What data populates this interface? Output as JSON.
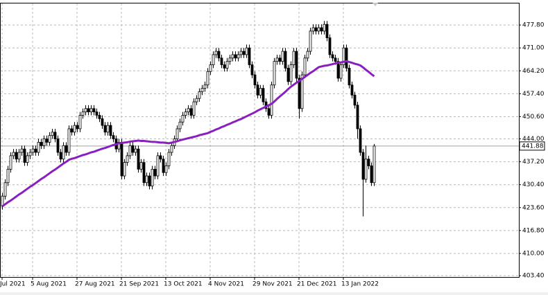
{
  "chart_data": {
    "type": "candlestick",
    "categories": [
      "Jul 2021",
      null,
      null,
      null,
      null,
      null,
      null,
      null,
      null,
      null,
      null,
      "5 Aug 2021",
      null,
      null,
      null,
      null,
      null,
      null,
      null,
      null,
      null,
      null,
      null,
      null,
      null,
      null,
      null,
      "27 Aug 2021",
      null,
      null,
      null,
      null,
      null,
      null,
      null,
      null,
      null,
      null,
      null,
      null,
      null,
      null,
      null,
      "21 Sep 2021",
      null,
      null,
      null,
      null,
      null,
      null,
      null,
      null,
      null,
      null,
      null,
      null,
      null,
      null,
      null,
      "13 Oct 2021",
      null,
      null,
      null,
      null,
      null,
      null,
      null,
      null,
      null,
      null,
      null,
      null,
      null,
      null,
      null,
      "4 Nov 2021",
      null,
      null,
      null,
      null,
      null,
      null,
      null,
      null,
      null,
      null,
      null,
      null,
      null,
      null,
      null,
      "29 Nov 2021",
      null,
      null,
      null,
      null,
      null,
      null,
      null,
      null,
      null,
      null,
      null,
      null,
      null,
      null,
      null,
      "21 Dec 2021",
      null,
      null,
      null,
      null,
      null,
      null,
      null,
      null,
      null,
      null,
      null,
      null,
      null,
      null,
      null,
      "13 Jan 2022",
      null,
      null,
      null,
      null,
      null,
      null,
      null,
      null,
      null,
      null,
      null
    ],
    "open": [
      424,
      427,
      431,
      435,
      439,
      440,
      438,
      440,
      441,
      437,
      439,
      440,
      441,
      440,
      443,
      442,
      444,
      443,
      445,
      446,
      444,
      440,
      438,
      442,
      440,
      447,
      446,
      448,
      447,
      451,
      452,
      453,
      452,
      453,
      452,
      451,
      450,
      448,
      446,
      448,
      445,
      444,
      441,
      443,
      433,
      437,
      439,
      442,
      440,
      441,
      435,
      437,
      431,
      433,
      430,
      435,
      433,
      439,
      438,
      434,
      436,
      440,
      442,
      444,
      447,
      449,
      451,
      452,
      453,
      451,
      455,
      456,
      458,
      459,
      460,
      464,
      466,
      469,
      470,
      468,
      466,
      465,
      467,
      468,
      469,
      468,
      469,
      470,
      469,
      471,
      466,
      463,
      460,
      457,
      459,
      455,
      453,
      451,
      460,
      467,
      468,
      467,
      470,
      465,
      461,
      466,
      470,
      462,
      453,
      463,
      468,
      470,
      476,
      477,
      476,
      477,
      476,
      478,
      474,
      469,
      468,
      467,
      462,
      466,
      471,
      465,
      460,
      457,
      454,
      447,
      440,
      432,
      438,
      436,
      431
    ],
    "high": [
      428,
      432,
      436,
      440,
      441,
      441,
      441,
      442,
      442,
      440,
      441,
      442,
      442,
      444,
      444,
      445,
      445,
      446,
      447,
      447,
      445,
      441,
      443,
      443,
      448,
      448,
      449,
      449,
      452,
      453,
      454,
      454,
      454,
      454,
      453,
      452,
      451,
      449,
      449,
      449,
      446,
      445,
      444,
      444,
      438,
      440,
      443,
      443,
      442,
      442,
      438,
      438,
      434,
      434,
      436,
      436,
      440,
      440,
      439,
      437,
      441,
      443,
      445,
      448,
      450,
      452,
      453,
      454,
      454,
      456,
      457,
      459,
      460,
      461,
      465,
      467,
      470,
      471,
      471,
      469,
      467,
      468,
      469,
      470,
      470,
      470,
      471,
      471,
      472,
      472,
      467,
      464,
      461,
      460,
      460,
      456,
      454,
      461,
      468,
      469,
      469,
      471,
      471,
      466,
      467,
      471,
      471,
      463,
      464,
      469,
      471,
      477,
      478,
      478,
      478,
      478,
      479,
      479,
      475,
      470,
      469,
      468,
      467,
      472,
      472,
      466,
      461,
      458,
      455,
      448,
      441,
      442,
      439,
      437,
      442.5
    ],
    "low": [
      423,
      426,
      430,
      434,
      438,
      437,
      437,
      439,
      436,
      436,
      438,
      439,
      439,
      439,
      441,
      441,
      442,
      442,
      444,
      443,
      439,
      437,
      437,
      439,
      439,
      445,
      445,
      446,
      446,
      450,
      451,
      451,
      451,
      451,
      450,
      449,
      447,
      445,
      445,
      444,
      443,
      440,
      440,
      432,
      432,
      436,
      438,
      439,
      439,
      434,
      434,
      430,
      430,
      429,
      429,
      432,
      432,
      437,
      433,
      433,
      435,
      439,
      441,
      443,
      446,
      448,
      450,
      451,
      450,
      450,
      454,
      455,
      457,
      458,
      459,
      463,
      465,
      468,
      467,
      465,
      464,
      464,
      466,
      467,
      467,
      467,
      468,
      468,
      468,
      465,
      462,
      459,
      456,
      456,
      454,
      452,
      450,
      450,
      459,
      466,
      466,
      466,
      464,
      460,
      460,
      465,
      461,
      450,
      452,
      462,
      467,
      469,
      475,
      475,
      475,
      475,
      475,
      473,
      468,
      467,
      466,
      461,
      461,
      465,
      464,
      459,
      456,
      453,
      444,
      439,
      421,
      431,
      435,
      430,
      430
    ],
    "close": [
      427,
      431,
      435,
      439,
      440,
      438,
      440,
      441,
      437,
      439,
      440,
      441,
      440,
      443,
      442,
      444,
      443,
      445,
      446,
      444,
      440,
      438,
      442,
      440,
      447,
      446,
      448,
      447,
      451,
      452,
      453,
      452,
      453,
      452,
      451,
      450,
      448,
      446,
      448,
      445,
      444,
      441,
      443,
      433,
      437,
      439,
      442,
      440,
      441,
      435,
      437,
      431,
      433,
      430,
      435,
      433,
      439,
      438,
      434,
      436,
      440,
      442,
      444,
      447,
      449,
      451,
      452,
      453,
      451,
      455,
      456,
      458,
      459,
      460,
      464,
      466,
      469,
      470,
      468,
      466,
      465,
      467,
      468,
      469,
      468,
      469,
      470,
      469,
      471,
      466,
      463,
      460,
      457,
      459,
      455,
      453,
      451,
      460,
      467,
      468,
      467,
      470,
      465,
      461,
      466,
      470,
      462,
      453,
      463,
      468,
      470,
      476,
      477,
      476,
      477,
      476,
      478,
      474,
      469,
      468,
      467,
      462,
      466,
      471,
      465,
      460,
      457,
      454,
      447,
      440,
      432,
      438,
      436,
      431,
      441.88
    ],
    "ma": {
      "color": "#8a1fc0",
      "values": [
        424.0,
        424.6,
        425.2,
        425.7,
        426.3,
        426.9,
        427.5,
        428.0,
        428.6,
        429.2,
        429.8,
        430.3,
        430.9,
        431.5,
        432.1,
        432.6,
        433.2,
        433.8,
        434.4,
        434.9,
        435.5,
        436.1,
        436.7,
        437.2,
        437.8,
        438.1,
        438.3,
        438.6,
        438.9,
        439.2,
        439.4,
        439.7,
        440.0,
        440.2,
        440.5,
        440.8,
        441.1,
        441.3,
        441.6,
        441.9,
        442.2,
        442.4,
        442.7,
        442.8,
        442.9,
        443.0,
        443.2,
        443.3,
        443.4,
        443.5,
        443.4,
        443.4,
        443.3,
        443.2,
        443.1,
        443.1,
        443.0,
        442.9,
        442.9,
        442.8,
        442.7,
        442.9,
        443.1,
        443.3,
        443.6,
        443.8,
        444.0,
        444.2,
        444.4,
        444.6,
        444.8,
        445.1,
        445.3,
        445.5,
        445.7,
        446.1,
        446.4,
        446.8,
        447.1,
        447.5,
        447.8,
        448.2,
        448.5,
        448.9,
        449.2,
        449.6,
        449.9,
        450.3,
        450.7,
        451.1,
        451.5,
        451.9,
        452.4,
        452.8,
        453.2,
        453.6,
        454.0,
        454.4,
        455.1,
        455.9,
        456.6,
        457.3,
        458.0,
        458.8,
        459.5,
        460.1,
        460.7,
        461.2,
        461.8,
        462.4,
        463.0,
        463.6,
        464.1,
        464.7,
        465.3,
        465.5,
        465.7,
        465.8,
        466.0,
        466.2,
        466.4,
        466.6,
        466.7,
        466.9,
        467.1,
        466.8,
        466.6,
        466.3,
        466.1,
        465.8,
        465.2,
        464.5,
        463.9,
        463.2,
        462.6
      ]
    },
    "up_color": "#ffffff",
    "down_color": "#000000",
    "price_line": {
      "value": 441.88,
      "label": "441.88"
    },
    "ylim": [
      403.0,
      484.2
    ],
    "yticks": [
      {
        "value": 477.8,
        "label": "477.80"
      },
      {
        "value": 471.0,
        "label": "471.00"
      },
      {
        "value": 464.2,
        "label": "464.20"
      },
      {
        "value": 457.4,
        "label": "457.40"
      },
      {
        "value": 450.6,
        "label": "450.60"
      },
      {
        "value": 444.0,
        "label": "444.00"
      },
      {
        "value": 437.2,
        "label": "437.20"
      },
      {
        "value": 430.4,
        "label": "430.40"
      },
      {
        "value": 423.6,
        "label": "423.60"
      },
      {
        "value": 416.8,
        "label": "416.80"
      },
      {
        "value": 410.0,
        "label": "410.00"
      },
      {
        "value": 403.4,
        "label": "403.40"
      }
    ],
    "grid": true
  }
}
